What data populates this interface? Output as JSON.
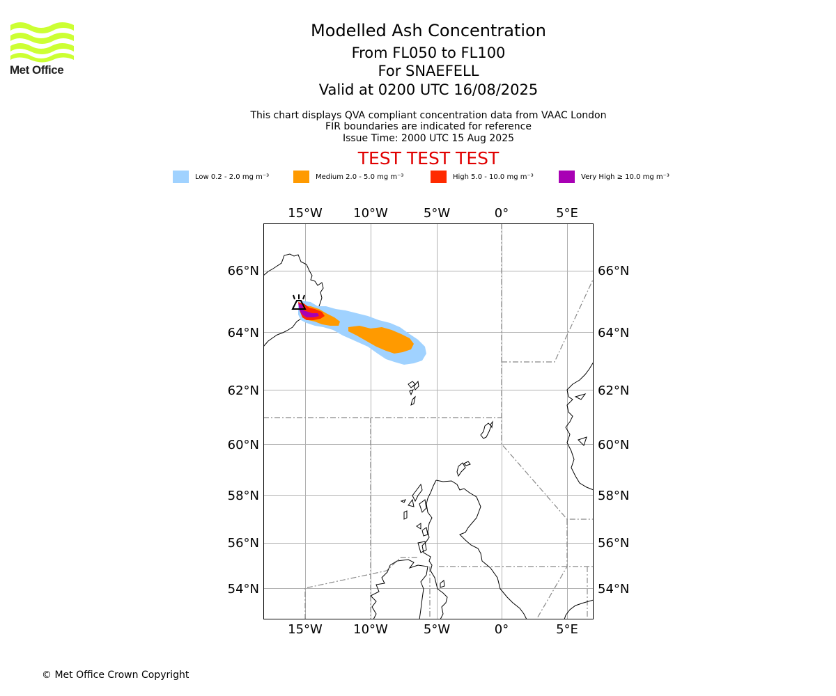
{
  "header": {
    "title": "Modelled Ash Concentration",
    "level_range": "From FL050 to FL100",
    "volcano": "For SNAEFELL",
    "valid_time": "Valid at 0200 UTC 16/08/2025",
    "note_line1": "This chart displays QVA compliant concentration data from VAAC London",
    "note_line2": "FIR boundaries are indicated for reference",
    "issue_time": "Issue Time: 2000 UTC 15 Aug 2025",
    "test_banner": "TEST TEST TEST"
  },
  "logo": {
    "text": "Met Office",
    "color": "#ccff33"
  },
  "legend": [
    {
      "label": "Low 0.2 - 2.0 mg m⁻³",
      "color": "#a0d2ff"
    },
    {
      "label": "Medium 2.0 - 5.0 mg m⁻³",
      "color": "#ff9a00"
    },
    {
      "label": "High 5.0 - 10.0 mg m⁻³",
      "color": "#ff2a00"
    },
    {
      "label": "Very High  ≥  10.0 mg m⁻³",
      "color": "#a800b4"
    }
  ],
  "map": {
    "longitude_labels": [
      "15°W",
      "10°W",
      "5°W",
      "0°",
      "5°E"
    ],
    "latitude_labels": [
      "66°N",
      "64°N",
      "62°N",
      "60°N",
      "58°N",
      "56°N",
      "54°N"
    ],
    "volcano_marker": "SNAEFELL"
  },
  "footer": {
    "copyright": "© Met Office Crown Copyright"
  }
}
